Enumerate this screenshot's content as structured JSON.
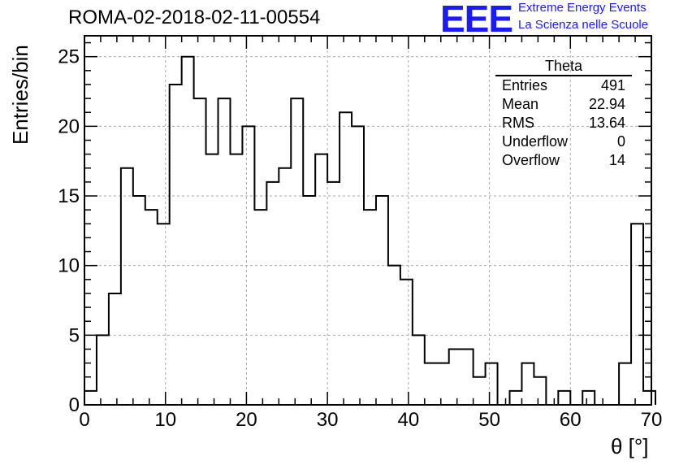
{
  "title": "ROMA-02-2018-02-11-00554",
  "logo": {
    "mark": "EEE",
    "line1": "Extreme Energy Events",
    "line2": "La Scienza nelle Scuole",
    "color": "#1a1aff"
  },
  "stats": {
    "title": "Theta",
    "rows": [
      {
        "label": "Entries",
        "value": "491"
      },
      {
        "label": "Mean",
        "value": "22.94"
      },
      {
        "label": "RMS",
        "value": "13.64"
      },
      {
        "label": "Underflow",
        "value": "0"
      },
      {
        "label": "Overflow",
        "value": "14"
      }
    ]
  },
  "chart_data": {
    "type": "histogram",
    "title": "ROMA-02-2018-02-11-00554",
    "xlabel": "θ [°]",
    "ylabel": "Entries/bin",
    "xlim": [
      0,
      70
    ],
    "ylim": [
      0,
      26.5
    ],
    "x_ticks": [
      0,
      10,
      20,
      30,
      40,
      50,
      60,
      70
    ],
    "y_ticks": [
      0,
      5,
      10,
      15,
      20,
      25
    ],
    "grid": true,
    "legend_position": "top-right",
    "bin_edges_start": 0,
    "bin_width": 1.5,
    "values": [
      1,
      5,
      8,
      17,
      15,
      14,
      13,
      23,
      25,
      22,
      18,
      22,
      18,
      20,
      14,
      16,
      17,
      22,
      15,
      18,
      16,
      21,
      20,
      14,
      15,
      10,
      9,
      5,
      3,
      3,
      4,
      4,
      2,
      3,
      0,
      1,
      3,
      2,
      0,
      1,
      0,
      1,
      0,
      0,
      3,
      13,
      1
    ],
    "line_color": "#000000",
    "grid_color": "#aaaaaa"
  }
}
